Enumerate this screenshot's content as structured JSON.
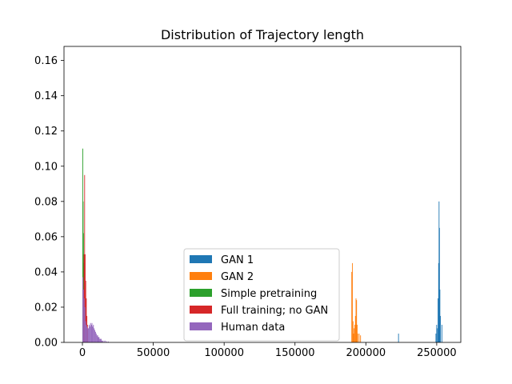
{
  "chart_data": {
    "type": "bar",
    "title": "Distribution of Trajectory length",
    "xlabel": "",
    "ylabel": "",
    "xlim": [
      -13000,
      267000
    ],
    "ylim": [
      0,
      0.168
    ],
    "grid": false,
    "legend_position": "lower center",
    "x_ticks": [
      0,
      50000,
      100000,
      150000,
      200000,
      250000
    ],
    "y_ticks": [
      0.0,
      0.02,
      0.04,
      0.06,
      0.08,
      0.1,
      0.12,
      0.14,
      0.16
    ],
    "x_tick_labels": [
      "0",
      "50000",
      "100000",
      "150000",
      "200000",
      "250000"
    ],
    "y_tick_labels": [
      "0.00",
      "0.02",
      "0.04",
      "0.06",
      "0.08",
      "0.10",
      "0.12",
      "0.14",
      "0.16"
    ],
    "series": [
      {
        "name": "GAN 1",
        "color": "#1f77b4",
        "bin_width": 500,
        "bins": [
          {
            "x": 222800,
            "y": 0.005
          },
          {
            "x": 249200,
            "y": 0.005
          },
          {
            "x": 249700,
            "y": 0.01
          },
          {
            "x": 250300,
            "y": 0.008
          },
          {
            "x": 250700,
            "y": 0.025
          },
          {
            "x": 251100,
            "y": 0.045
          },
          {
            "x": 251400,
            "y": 0.08
          },
          {
            "x": 251700,
            "y": 0.065
          },
          {
            "x": 252000,
            "y": 0.03
          },
          {
            "x": 252400,
            "y": 0.015
          },
          {
            "x": 253400,
            "y": 0.01
          }
        ]
      },
      {
        "name": "GAN 2",
        "color": "#ff7f0e",
        "bin_width": 450,
        "bins": [
          {
            "x": 189800,
            "y": 0.04
          },
          {
            "x": 190300,
            "y": 0.045
          },
          {
            "x": 190700,
            "y": 0.012
          },
          {
            "x": 191100,
            "y": 0.005
          },
          {
            "x": 191500,
            "y": 0.008
          },
          {
            "x": 192000,
            "y": 0.01
          },
          {
            "x": 192400,
            "y": 0.015
          },
          {
            "x": 192800,
            "y": 0.025
          },
          {
            "x": 193200,
            "y": 0.024
          },
          {
            "x": 193600,
            "y": 0.01
          },
          {
            "x": 194000,
            "y": 0.005
          },
          {
            "x": 195000,
            "y": 0.005
          },
          {
            "x": 196000,
            "y": 0.004
          }
        ]
      },
      {
        "name": "Simple pretraining",
        "color": "#2ca02c",
        "bin_width": 200,
        "bins": [
          {
            "x": 0,
            "y": 0.11
          },
          {
            "x": 250,
            "y": 0.08
          },
          {
            "x": 500,
            "y": 0.062
          },
          {
            "x": 750,
            "y": 0.045
          },
          {
            "x": 1000,
            "y": 0.025
          },
          {
            "x": 1300,
            "y": 0.01
          }
        ]
      },
      {
        "name": "Full training; no GAN",
        "color": "#d62728",
        "bin_width": 300,
        "bins": [
          {
            "x": 500,
            "y": 0.03
          },
          {
            "x": 900,
            "y": 0.05
          },
          {
            "x": 1300,
            "y": 0.095
          },
          {
            "x": 1700,
            "y": 0.05
          },
          {
            "x": 2100,
            "y": 0.035
          },
          {
            "x": 2500,
            "y": 0.025
          },
          {
            "x": 2900,
            "y": 0.015
          },
          {
            "x": 3300,
            "y": 0.01
          }
        ]
      },
      {
        "name": "Human data",
        "color": "#9467bd",
        "bin_width": 500,
        "bins": [
          {
            "x": 0,
            "y": 0.037
          },
          {
            "x": 500,
            "y": 0.03
          },
          {
            "x": 1000,
            "y": 0.025
          },
          {
            "x": 1500,
            "y": 0.02
          },
          {
            "x": 2000,
            "y": 0.012
          },
          {
            "x": 2500,
            "y": 0.01
          },
          {
            "x": 3000,
            "y": 0.009
          },
          {
            "x": 3500,
            "y": 0.008
          },
          {
            "x": 4000,
            "y": 0.008
          },
          {
            "x": 4500,
            "y": 0.01
          },
          {
            "x": 5000,
            "y": 0.009
          },
          {
            "x": 5500,
            "y": 0.011
          },
          {
            "x": 6000,
            "y": 0.01
          },
          {
            "x": 6500,
            "y": 0.011
          },
          {
            "x": 7000,
            "y": 0.009
          },
          {
            "x": 7500,
            "y": 0.01
          },
          {
            "x": 8000,
            "y": 0.008
          },
          {
            "x": 8500,
            "y": 0.007
          },
          {
            "x": 9000,
            "y": 0.006
          },
          {
            "x": 9500,
            "y": 0.005
          },
          {
            "x": 10000,
            "y": 0.004
          },
          {
            "x": 10500,
            "y": 0.004
          },
          {
            "x": 11000,
            "y": 0.003
          },
          {
            "x": 11500,
            "y": 0.003
          },
          {
            "x": 12000,
            "y": 0.002
          },
          {
            "x": 12500,
            "y": 0.002
          },
          {
            "x": 13000,
            "y": 0.002
          },
          {
            "x": 13500,
            "y": 0.001
          },
          {
            "x": 14000,
            "y": 0.001
          },
          {
            "x": 15000,
            "y": 0.001
          },
          {
            "x": 16000,
            "y": 0.001
          },
          {
            "x": 17000,
            "y": 0.0005
          },
          {
            "x": 18000,
            "y": 0.0005
          }
        ]
      }
    ]
  }
}
